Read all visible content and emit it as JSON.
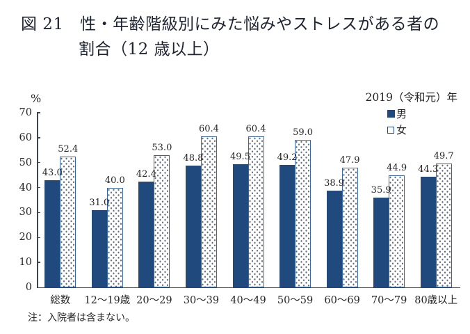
{
  "title": {
    "line1": "図 21　性・年齢階級別にみた悩みやストレスがある者の",
    "line2": "割合（12 歳以上）"
  },
  "year_note": "2019（令和元）年",
  "note": "注：入院者は含まない。",
  "chart_data": {
    "type": "bar",
    "title": "性・年齢階級別にみた悩みやストレスがある者の割合（12歳以上）",
    "unit_label": "%",
    "categories": [
      "総数",
      "12～19歳",
      "20～29",
      "30～39",
      "40～49",
      "50～59",
      "60～69",
      "70～79",
      "80歳以上"
    ],
    "series": [
      {
        "name": "男",
        "color": "#204a7d",
        "values": [
          43.0,
          31.0,
          42.4,
          48.8,
          49.5,
          49.2,
          38.9,
          35.9,
          44.3
        ]
      },
      {
        "name": "女",
        "color": "#ffffff-dotted",
        "values": [
          52.4,
          40.0,
          53.0,
          60.4,
          60.4,
          59.0,
          47.9,
          44.9,
          49.7
        ]
      }
    ],
    "ylim": [
      0,
      70
    ],
    "ytick_interval": 10,
    "grid": "off",
    "legend_position": "top-right",
    "value_labels": "above-bars"
  },
  "colors": {
    "male_bar": "#204a7d",
    "female_bar_border": "#38679e",
    "female_bar_fill": "#ffffff",
    "axis": "#3c4452",
    "text": "#252525"
  }
}
